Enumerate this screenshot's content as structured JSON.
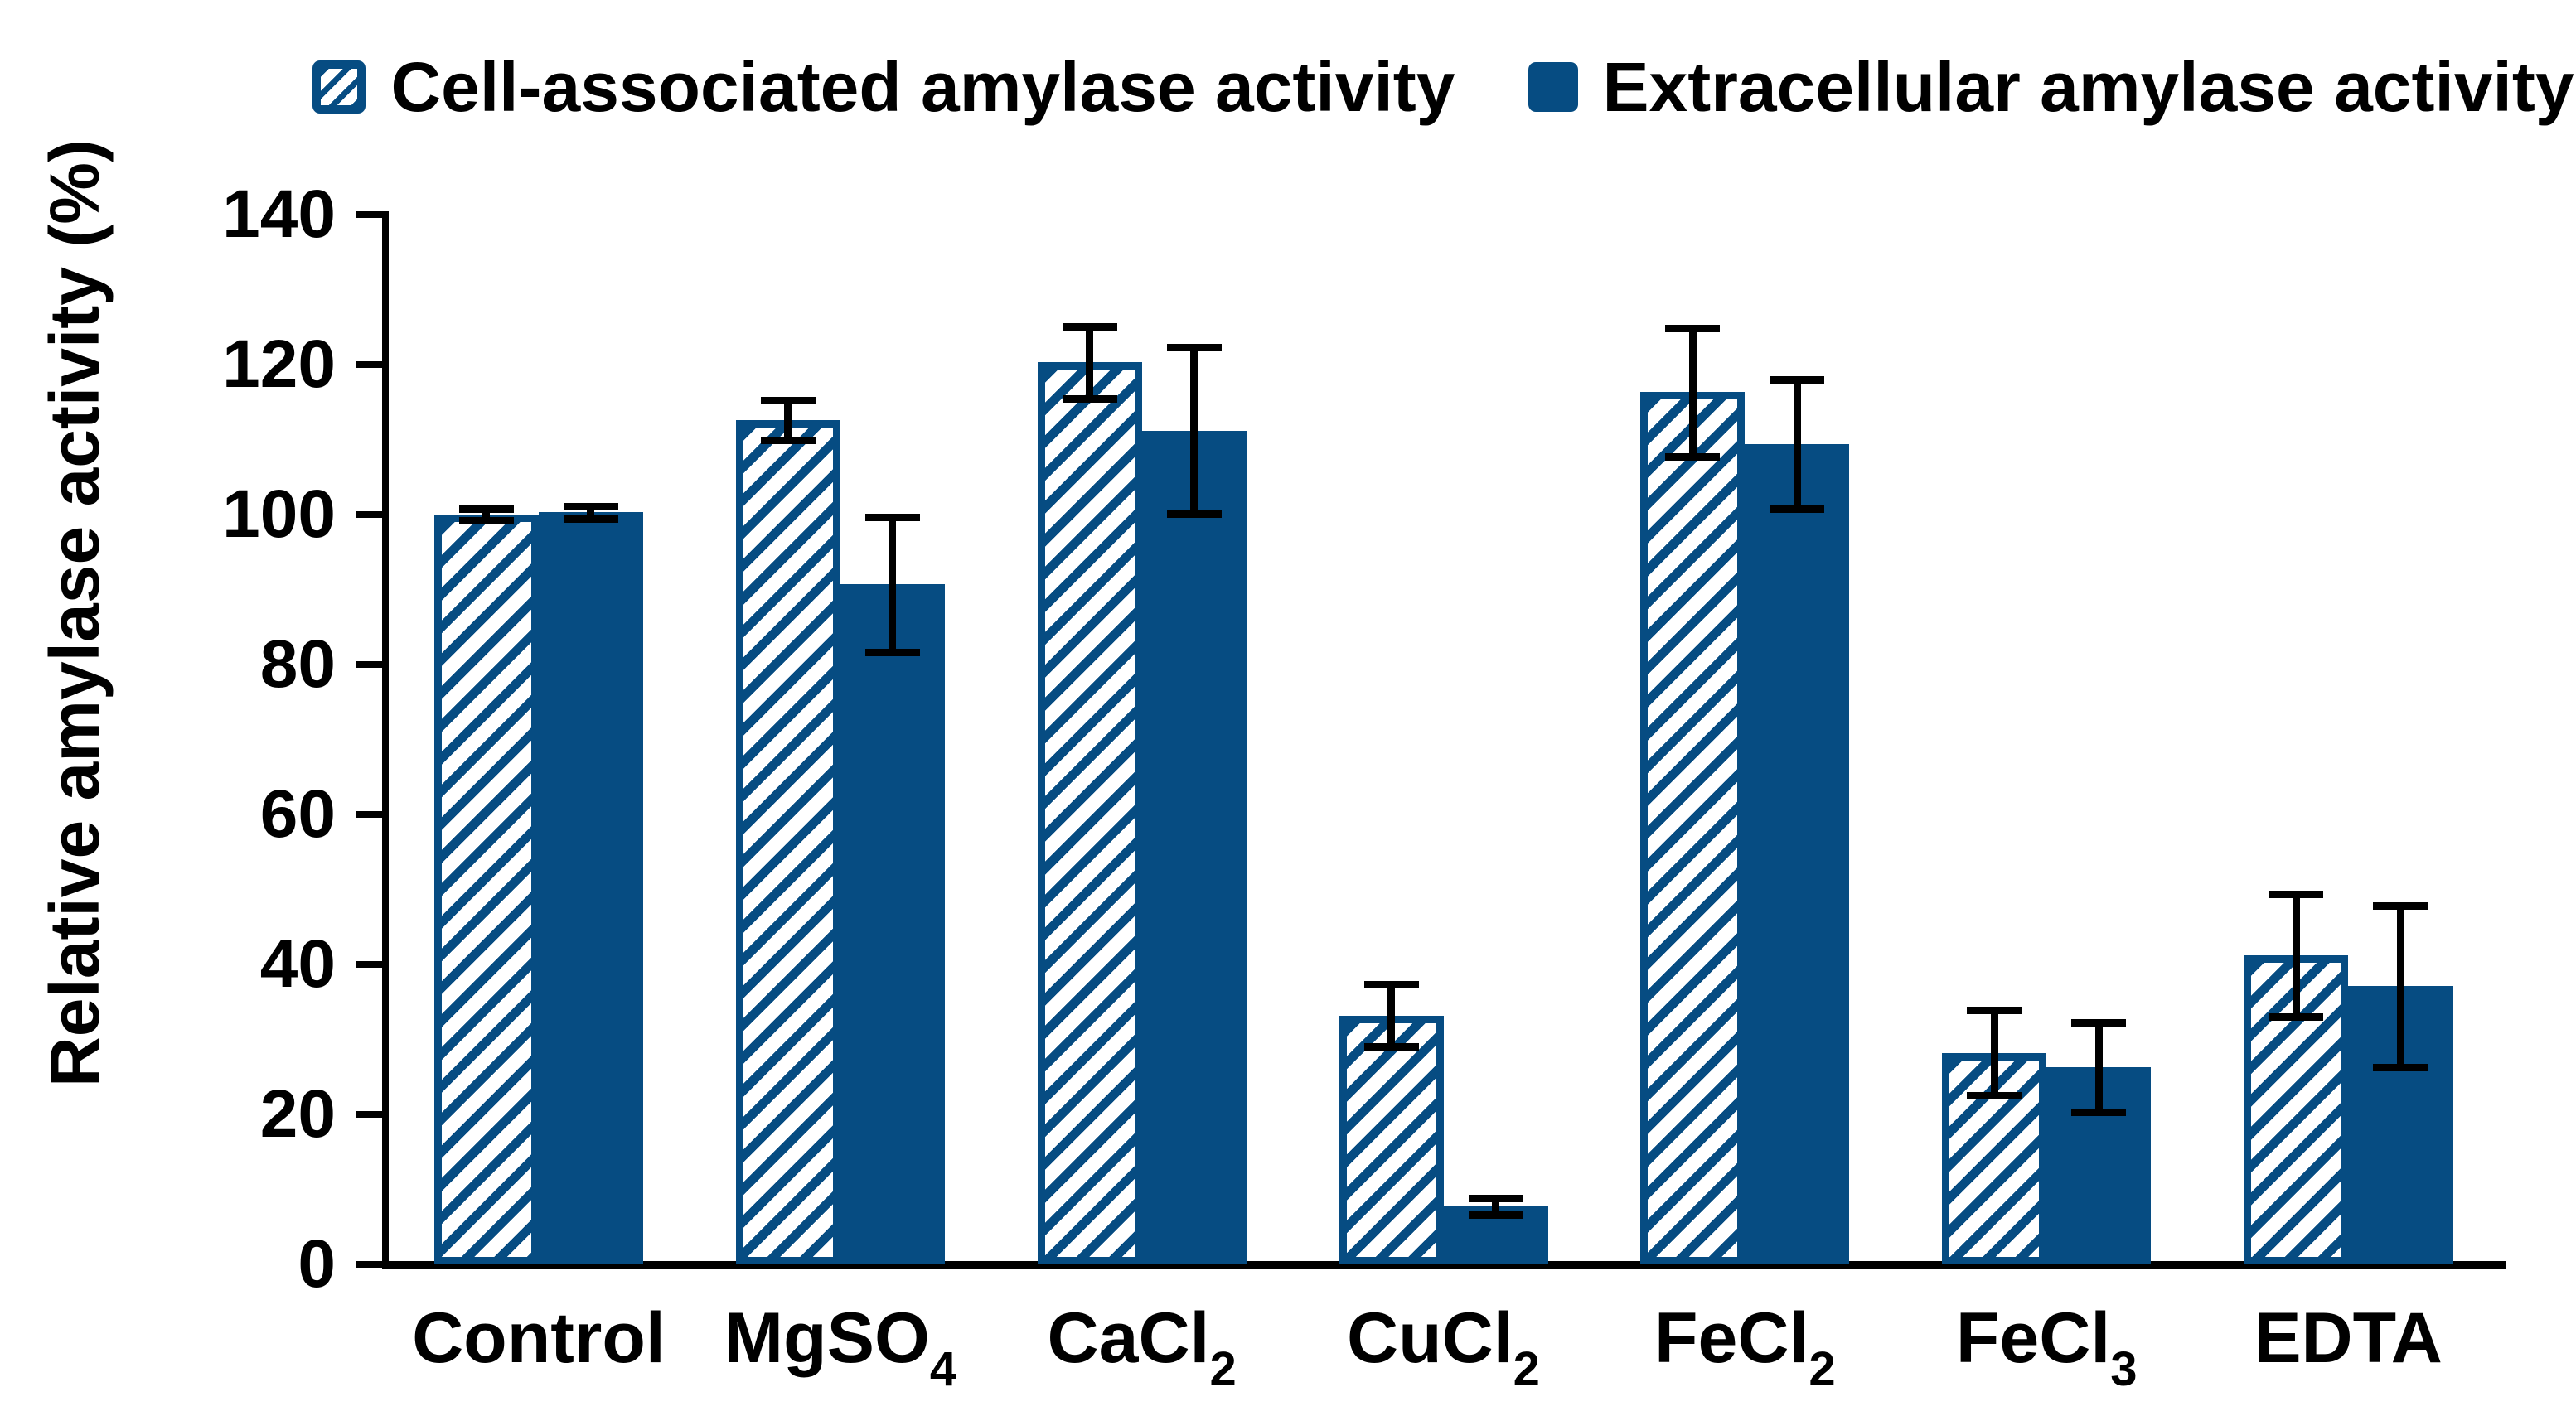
{
  "colors": {
    "bar_blue": "#064C82",
    "error_bar": "#000000",
    "axis": "#000000",
    "background": "#FFFFFF"
  },
  "legend": {
    "items": [
      {
        "label": "Cell-associated amylase activity",
        "style": "hatched"
      },
      {
        "label": "Extracellular amylase activity",
        "style": "solid"
      }
    ]
  },
  "y_axis": {
    "title": "Relative amylase activity (%)",
    "ticks": [
      0,
      20,
      40,
      60,
      80,
      100,
      120,
      140
    ],
    "min": 0,
    "max": 140
  },
  "chart_data": {
    "type": "bar",
    "title": "",
    "xlabel": "",
    "ylabel": "Relative amylase activity (%)",
    "ylim": [
      0,
      140
    ],
    "grid": false,
    "legend_position": "top-center",
    "categories": [
      "Control",
      "MgSO4",
      "CaCl2",
      "CuCl2",
      "FeCl2",
      "FeCl3",
      "EDTA"
    ],
    "category_labels": [
      {
        "text": "Control",
        "sub": ""
      },
      {
        "text": "MgSO",
        "sub": "4"
      },
      {
        "text": "CaCl",
        "sub": "2"
      },
      {
        "text": "CuCl",
        "sub": "2"
      },
      {
        "text": "FeCl",
        "sub": "2"
      },
      {
        "text": "FeCl",
        "sub": "3"
      },
      {
        "text": "EDTA",
        "sub": ""
      }
    ],
    "series": [
      {
        "name": "Cell-associated amylase activity",
        "pattern": "hatched",
        "values": [
          100.0,
          112.6,
          120.3,
          33.2,
          116.3,
          28.2,
          41.2
        ],
        "errors": [
          0.8,
          2.6,
          4.8,
          4.1,
          8.6,
          5.7,
          8.2
        ]
      },
      {
        "name": "Extracellular amylase activity",
        "pattern": "solid",
        "values": [
          100.3,
          90.7,
          111.2,
          7.7,
          109.4,
          26.3,
          37.1
        ],
        "errors": [
          0.8,
          9.0,
          11.1,
          1.1,
          8.6,
          6.0,
          10.8
        ]
      }
    ]
  }
}
